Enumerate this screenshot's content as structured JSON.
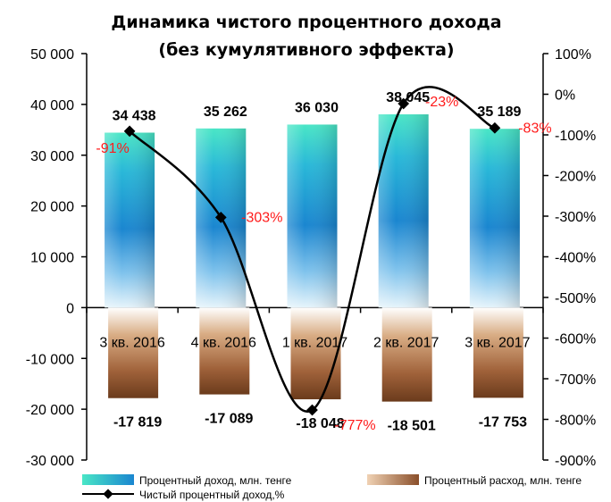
{
  "chart_data": {
    "type": "bar",
    "title_line1": "Динамика чистого процентного дохода",
    "title_line2": "(без кумулятивного эффекта)",
    "categories": [
      "3 кв. 2016",
      "4 кв. 2016",
      "1 кв. 2017",
      "2 кв. 2017",
      "3 кв. 2017"
    ],
    "series": [
      {
        "name": "Процентный доход, млн. тенге",
        "type": "bar",
        "axis": "left",
        "values": [
          34438,
          35262,
          36030,
          38045,
          35189
        ],
        "labels": [
          "34 438",
          "35 262",
          "36 030",
          "38 045",
          "35 189"
        ],
        "color": "#1e9fd8"
      },
      {
        "name": "Процентный расход, млн. тенге",
        "type": "bar",
        "axis": "left",
        "values": [
          -17819,
          -17089,
          -18048,
          -18501,
          -17753
        ],
        "labels": [
          "-17 819",
          "-17 089",
          "-18 048",
          "-18 501",
          "-17 753"
        ],
        "color": "#a0623a"
      },
      {
        "name": "Чистый процентный доход,%",
        "type": "line",
        "axis": "right",
        "values": [
          -91,
          -303,
          -777,
          -23,
          -83
        ],
        "labels": [
          "-91%",
          "-303%",
          "-777%",
          "-23%",
          "-83%"
        ],
        "color": "#000000",
        "label_color": "#ff1a1a"
      }
    ],
    "y_left": {
      "min": -30000,
      "max": 50000,
      "step": 10000,
      "ticks": [
        "50 000",
        "40 000",
        "30 000",
        "20 000",
        "10 000",
        "0",
        "-10 000",
        "-20 000",
        "-30 000"
      ]
    },
    "y_right": {
      "min": -900,
      "max": 100,
      "step": 100,
      "ticks": [
        "100%",
        "0%",
        "-100%",
        "-200%",
        "-300%",
        "-400%",
        "-500%",
        "-600%",
        "-700%",
        "-800%",
        "-900%"
      ]
    },
    "grid": false,
    "legend_position": "bottom"
  }
}
